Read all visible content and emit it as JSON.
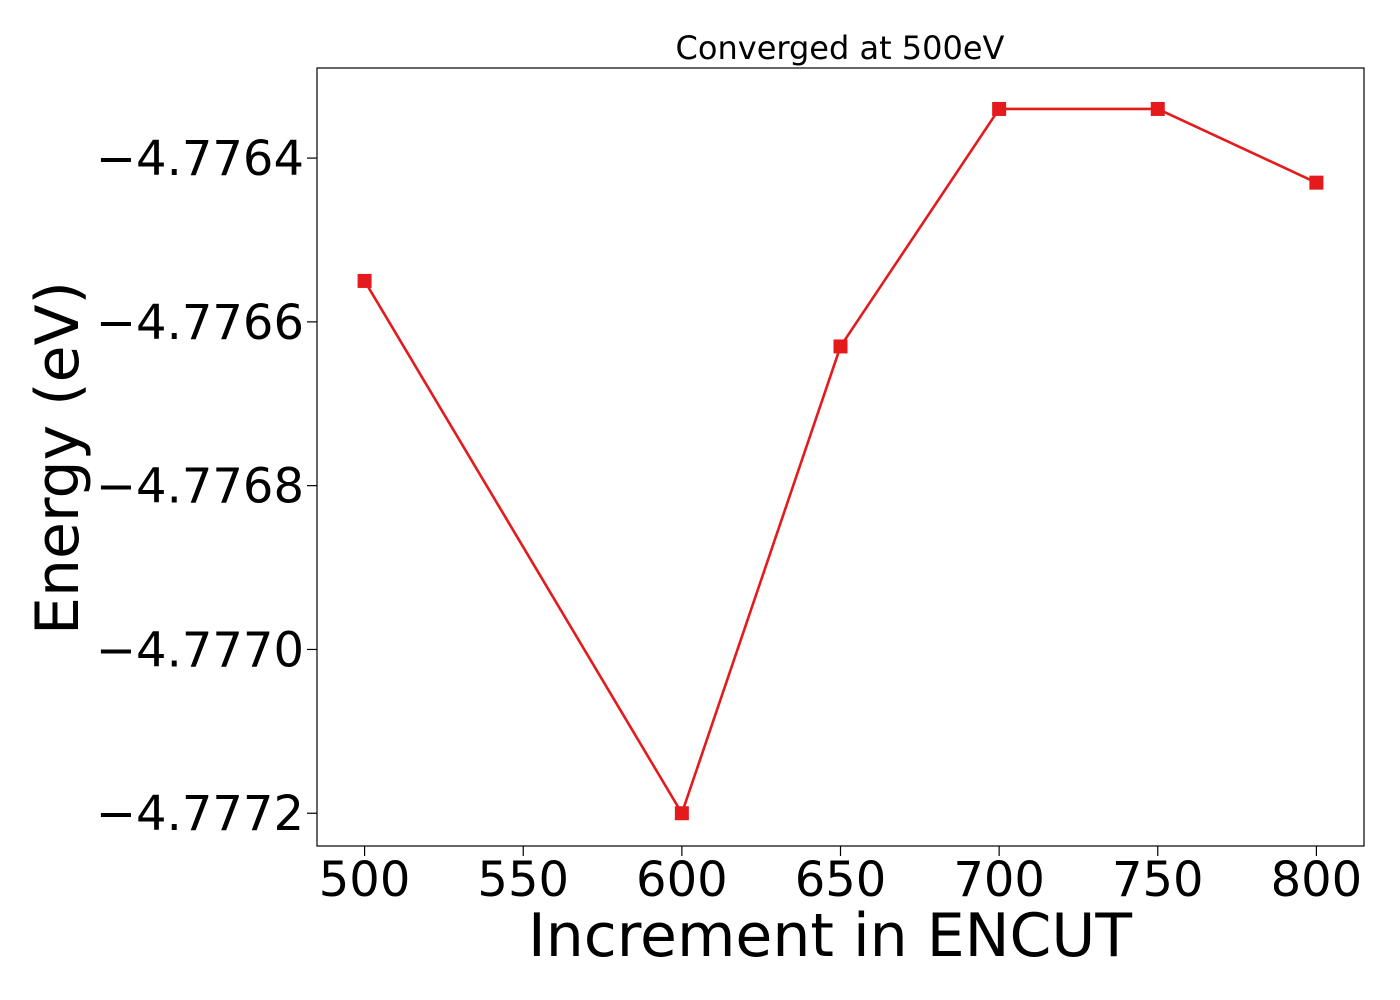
{
  "chart_data": {
    "type": "line",
    "title": "Converged at 500eV",
    "xlabel": "Increment in ENCUT",
    "ylabel": "Energy (eV)",
    "x": [
      500,
      600,
      650,
      700,
      750,
      800
    ],
    "series": [
      {
        "values": [
          -4.77655,
          -4.7772,
          -4.77663,
          -4.77634,
          -4.77634,
          -4.77643
        ],
        "color": "#e41a1c",
        "marker": "square"
      }
    ],
    "xlim": [
      485,
      815
    ],
    "ylim": [
      -4.77724,
      -4.77629
    ],
    "xticks": [
      500,
      550,
      600,
      650,
      700,
      750,
      800
    ],
    "xtick_labels": [
      "500",
      "550",
      "600",
      "650",
      "700",
      "750",
      "800"
    ],
    "yticks": [
      -4.7764,
      -4.7766,
      -4.7768,
      -4.777,
      -4.7772
    ],
    "ytick_labels": [
      "−4.7764",
      "−4.7766",
      "−4.7768",
      "−4.7770",
      "−4.7772"
    ],
    "grid": false,
    "legend": "none"
  }
}
